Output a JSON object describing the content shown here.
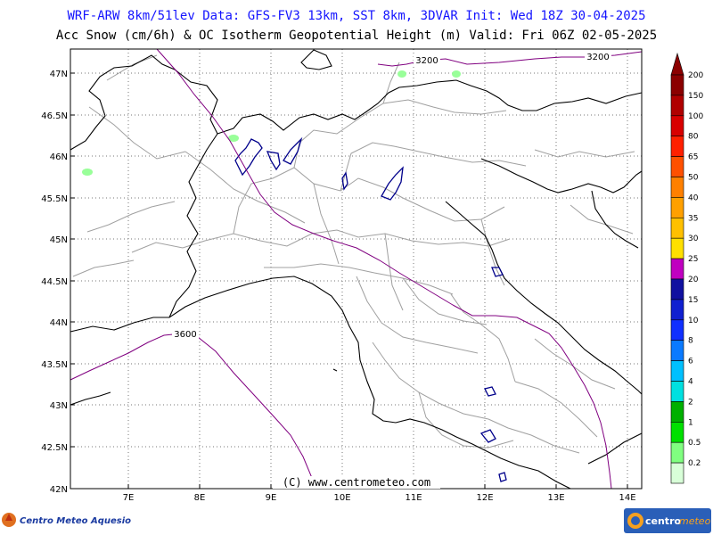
{
  "header": {
    "line1": "WRF-ARW 8km/51lev  Data: GFS-FV3 13km, SST 8km, 3DVAR  Init: Wed 18Z 30-04-2025",
    "line2": "Acc Snow (cm/6h) & OC Isotherm Geopotential Height (m)  Valid: Fri 06Z 02-05-2025"
  },
  "map": {
    "lat_ticks": [
      "47N",
      "46.5N",
      "46N",
      "45.5N",
      "45N",
      "44.5N",
      "44N",
      "43.5N",
      "43N",
      "42.5N",
      "42N"
    ],
    "lon_ticks": [
      "7E",
      "8E",
      "9E",
      "10E",
      "11E",
      "12E",
      "13E",
      "14E"
    ],
    "isotherm_labels": {
      "north_a": "3200",
      "north_b": "3200",
      "south": "3600"
    },
    "credit": "(C) www.centrometeo.com",
    "colors": {
      "isotherm": "#800080",
      "coast": "#000000",
      "border": "#a0a0a0",
      "lakes": "#00008b",
      "snow": "#99ff99"
    }
  },
  "colorbar": {
    "levels": [
      "200",
      "150",
      "100",
      "80",
      "65",
      "50",
      "40",
      "35",
      "30",
      "25",
      "20",
      "15",
      "10",
      "8",
      "6",
      "4",
      "2",
      "1",
      "0.5",
      "0.2"
    ],
    "colors": [
      "#8b0000",
      "#b00000",
      "#d80000",
      "#ff2000",
      "#ff5000",
      "#ff8000",
      "#ffa000",
      "#ffc000",
      "#ffe000",
      "#c000c0",
      "#1010a0",
      "#1020d0",
      "#1030ff",
      "#0a7aff",
      "#00c0ff",
      "#00e0e0",
      "#00b000",
      "#00e000",
      "#80ff80",
      "#d8ffd8"
    ]
  },
  "logos": {
    "left": "Centro Meteo Aquesio",
    "right_a": "centro",
    "right_b": "meteo"
  }
}
